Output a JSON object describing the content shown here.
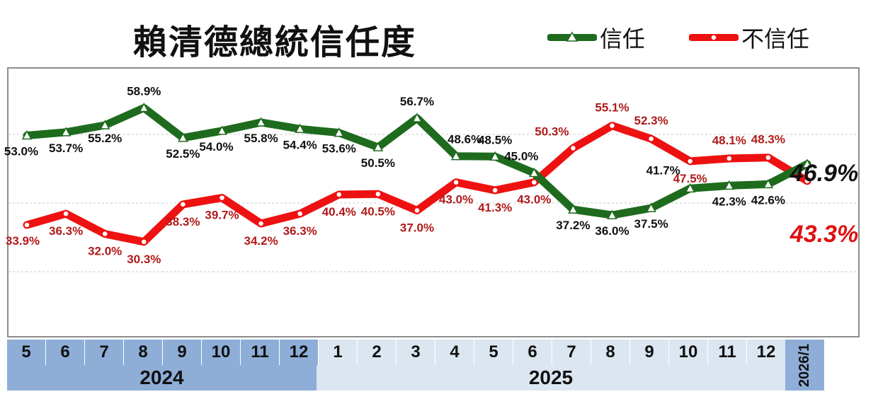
{
  "title": "賴清德總統信任度",
  "legend": {
    "trust": "信任",
    "distrust": "不信任"
  },
  "colors": {
    "trust": "#1e6b1e",
    "distrust": "#ee1111",
    "trust_label": "#111111",
    "distrust_label": "#b01a1a"
  },
  "months": [
    "5",
    "6",
    "7",
    "8",
    "9",
    "10",
    "11",
    "12",
    "1",
    "2",
    "3",
    "4",
    "5",
    "6",
    "7",
    "8",
    "9",
    "10",
    "11",
    "12"
  ],
  "years": {
    "y2024": "2024",
    "y2025": "2025",
    "y2026": "2026/1"
  },
  "chart_data": {
    "type": "line",
    "title": "賴清德總統信任度",
    "x": [
      "2024/5",
      "2024/6",
      "2024/7",
      "2024/8",
      "2024/9",
      "2024/10",
      "2024/11",
      "2024/12",
      "2025/1",
      "2025/2",
      "2025/3",
      "2025/4",
      "2025/5",
      "2025/6",
      "2025/7",
      "2025/8",
      "2025/9",
      "2025/10",
      "2025/11",
      "2025/12",
      "2026/1"
    ],
    "series": [
      {
        "name": "信任",
        "values": [
          53.0,
          53.7,
          55.2,
          58.9,
          52.5,
          54.0,
          55.8,
          54.4,
          53.6,
          50.5,
          56.7,
          48.6,
          48.5,
          45.0,
          37.2,
          36.0,
          37.5,
          41.7,
          42.3,
          42.6,
          46.9
        ]
      },
      {
        "name": "不信任",
        "values": [
          33.9,
          36.3,
          32.0,
          30.3,
          38.3,
          39.7,
          34.2,
          36.3,
          40.4,
          40.5,
          37.0,
          43.0,
          41.3,
          43.0,
          50.3,
          55.1,
          52.3,
          47.5,
          48.1,
          48.3,
          43.3
        ]
      }
    ],
    "data_labels": {
      "trust": [
        "53.0%",
        "53.7%",
        "55.2%",
        "58.9%",
        "52.5%",
        "54.0%",
        "55.8%",
        "54.4%",
        "53.6%",
        "50.5%",
        "56.7%",
        "48.6%",
        "48.5%",
        "45.0%",
        "37.2%",
        "36.0%",
        "37.5%",
        "41.7%",
        "42.3%",
        "42.6%",
        "46.9%"
      ],
      "distrust": [
        "33.9%",
        "36.3%",
        "32.0%",
        "30.3%",
        "38.3%",
        "39.7%",
        "34.2%",
        "36.3%",
        "40.4%",
        "40.5%",
        "37.0%",
        "43.0%",
        "41.3%",
        "43.0%",
        "50.3%",
        "55.1%",
        "52.3%",
        "47.5%",
        "48.1%",
        "48.3%",
        "43.3%"
      ]
    },
    "grid": true,
    "legend_position": "top-right"
  }
}
